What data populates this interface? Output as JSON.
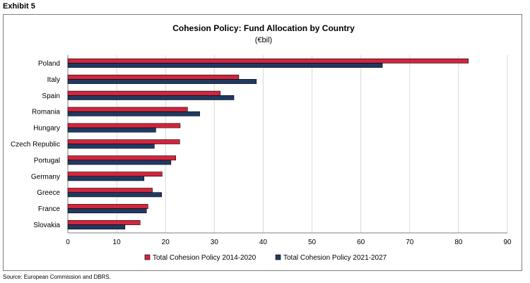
{
  "exhibit_label": "Exhibit 5",
  "source": "Source: European Commission and DBRS.",
  "colors": {
    "series_2014": "#d4253c",
    "series_2021": "#1f3a63",
    "grid": "#d9d9d9"
  },
  "chart_data": {
    "type": "bar",
    "orientation": "horizontal",
    "title": "Cohesion Policy: Fund Allocation by Country",
    "subtitle": "(€bil)",
    "categories": [
      "Poland",
      "Italy",
      "Spain",
      "Romania",
      "Hungary",
      "Czech Republic",
      "Portugal",
      "Germany",
      "Greece",
      "France",
      "Slovakia"
    ],
    "series": [
      {
        "name": "Total Cohesion Policy 2014-2020",
        "values": [
          82.0,
          35.0,
          31.2,
          24.5,
          23.0,
          22.9,
          22.1,
          19.3,
          17.3,
          16.4,
          14.8
        ]
      },
      {
        "name": "Total Cohesion Policy 2021-2027",
        "values": [
          64.4,
          38.6,
          34.0,
          27.0,
          18.0,
          17.7,
          21.1,
          15.6,
          19.2,
          16.1,
          11.7
        ]
      }
    ],
    "xlim": [
      0,
      90
    ],
    "xticks": [
      0,
      10,
      20,
      30,
      40,
      50,
      60,
      70,
      80,
      90
    ],
    "grid": "vertical",
    "legend_position": "bottom"
  }
}
